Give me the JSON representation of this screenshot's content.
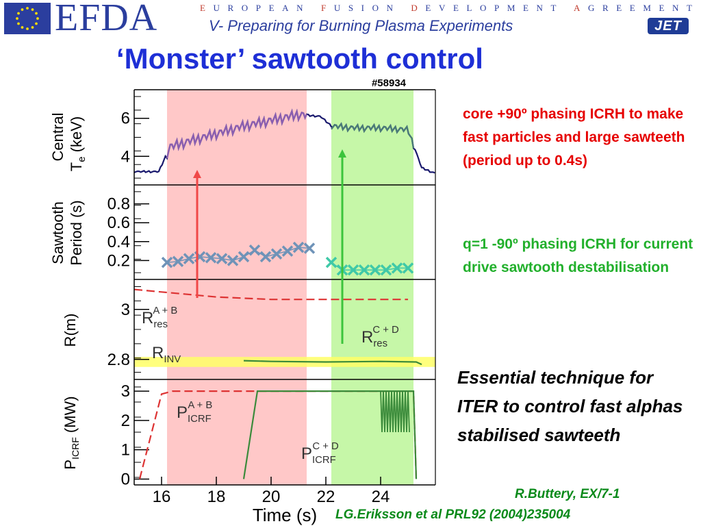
{
  "header": {
    "logo_text": "EFDA",
    "tagline_parts": [
      {
        "text": "E",
        "hl": true
      },
      {
        "text": "UROPEAN ",
        "hl": false
      },
      {
        "text": "F",
        "hl": true
      },
      {
        "text": "USION ",
        "hl": false
      },
      {
        "text": "D",
        "hl": true
      },
      {
        "text": "EVELOPMENT ",
        "hl": false
      },
      {
        "text": "A",
        "hl": true
      },
      {
        "text": "GREEMENT",
        "hl": false
      }
    ],
    "subtitle": "V- Preparing for Burning Plasma Experiments",
    "jet_logo": "JET",
    "eu_flag_icon": "eu-flag-icon"
  },
  "title": "‘Monster’ sawtooth control",
  "annotations": {
    "red_note": "core +90º phasing ICRH to make fast particles and large sawteeth (period up to 0.4s)",
    "green_note": "q=1 -90º phasing ICRH for current drive sawtooth destabilisation",
    "iter_note": "Essential technique for ITER to control fast alphas stabilised sawteeth",
    "ref_1": "R.Buttery, EX/7-1",
    "ref_2": "LG.Eriksson et al PRL92 (2004)235004"
  },
  "colors": {
    "brand_blue": "#2b3e9e",
    "title_blue": "#1e2fd6",
    "red_note": "#e60000",
    "green_note": "#22b02c",
    "ref_green": "#0a8a1a",
    "red_band": "#ffc8c8",
    "green_band": "#c6f7a8",
    "inv_band": "#ffff66",
    "te_trace": "#1a1a6e",
    "te_red_phase": "#8a5fb0",
    "te_green_phase": "#4a7a78",
    "sawtooth_red_phase": "#6f93b8",
    "sawtooth_green_phase": "#3fc9a8",
    "dashed_red": "#dd3333",
    "solid_green": "#3a8a3a"
  },
  "chart_data": {
    "type": "line",
    "shot": "#58934",
    "xlabel": "Time (s)",
    "xlim": [
      15,
      26
    ],
    "xticks": [
      16,
      18,
      20,
      22,
      24
    ],
    "highlight_bands": [
      {
        "name": "red",
        "x": [
          16.2,
          21.3
        ]
      },
      {
        "name": "green",
        "x": [
          22.2,
          25.2
        ]
      }
    ],
    "panels": [
      {
        "id": "te",
        "ylabel_line1": "Central",
        "ylabel_line2": "T",
        "ylabel_sub": "e",
        "ylabel_unit": " (keV)",
        "ylim": [
          2.5,
          7.5
        ],
        "yticks": [
          4,
          6
        ],
        "series": [
          {
            "style": "sawtooth",
            "points": [
              [
                15,
                3.2
              ],
              [
                15.9,
                3.2
              ],
              [
                16.3,
                4.5
              ],
              [
                17,
                4.8
              ],
              [
                18,
                5.2
              ],
              [
                19,
                5.6
              ],
              [
                20,
                5.9
              ],
              [
                21,
                6.2
              ],
              [
                21.8,
                6.1
              ],
              [
                22.2,
                5.6
              ],
              [
                23,
                5.5
              ],
              [
                24,
                5.5
              ],
              [
                25,
                5.4
              ],
              [
                25.5,
                3.4
              ],
              [
                26,
                3.1
              ]
            ]
          }
        ]
      },
      {
        "id": "sawtooth_period",
        "ylabel_line1": "Sawtooth",
        "ylabel_line2": "Period (s)",
        "ylim": [
          0,
          1.0
        ],
        "yticks": [
          0.2,
          0.4,
          0.6,
          0.8
        ],
        "series": [
          {
            "style": "crosses-red-phase",
            "points": [
              [
                16.2,
                0.18
              ],
              [
                16.6,
                0.19
              ],
              [
                17.0,
                0.22
              ],
              [
                17.4,
                0.24
              ],
              [
                17.8,
                0.23
              ],
              [
                18.2,
                0.22
              ],
              [
                18.6,
                0.2
              ],
              [
                19.0,
                0.24
              ],
              [
                19.4,
                0.31
              ],
              [
                19.8,
                0.24
              ],
              [
                20.2,
                0.27
              ],
              [
                20.6,
                0.3
              ],
              [
                21.0,
                0.34
              ],
              [
                21.4,
                0.33
              ]
            ]
          },
          {
            "style": "crosses-green-phase",
            "points": [
              [
                22.2,
                0.18
              ],
              [
                22.6,
                0.1
              ],
              [
                23.0,
                0.1
              ],
              [
                23.4,
                0.1
              ],
              [
                23.8,
                0.1
              ],
              [
                24.2,
                0.1
              ],
              [
                24.6,
                0.12
              ],
              [
                25.0,
                0.12
              ]
            ]
          }
        ]
      },
      {
        "id": "radius",
        "ylabel": "R(m)",
        "ylim": [
          2.72,
          3.12
        ],
        "yticks": [
          2.8,
          3.0
        ],
        "inv_band": [
          2.77,
          2.81
        ],
        "labels": [
          {
            "main": "R",
            "sub": "res",
            "sup": "A + B"
          },
          {
            "main": "R",
            "sub": "res",
            "sup": "C + D"
          },
          {
            "main": "R",
            "sub": "INV",
            "sup": ""
          }
        ],
        "series": [
          {
            "style": "dashed",
            "points": [
              [
                15,
                3.08
              ],
              [
                16,
                3.07
              ],
              [
                18,
                3.05
              ],
              [
                20,
                3.04
              ],
              [
                22,
                3.04
              ],
              [
                24,
                3.04
              ],
              [
                25,
                3.04
              ]
            ]
          },
          {
            "style": "solid",
            "points": [
              [
                19,
                2.795
              ],
              [
                20,
                2.792
              ],
              [
                22,
                2.79
              ],
              [
                24,
                2.792
              ],
              [
                25.3,
                2.79
              ],
              [
                25.5,
                2.78
              ]
            ]
          }
        ]
      },
      {
        "id": "picrf",
        "ylabel_main": "P",
        "ylabel_sub": "ICRF",
        "ylabel_unit": " (MW)",
        "ylim": [
          -0.2,
          3.4
        ],
        "yticks": [
          0,
          1,
          2,
          3
        ],
        "labels": [
          {
            "main": "P",
            "sub": "ICRF",
            "sup": "A + B"
          },
          {
            "main": "P",
            "sub": "ICRF",
            "sup": "C + D"
          }
        ],
        "series": [
          {
            "style": "dashed",
            "points": [
              [
                15.2,
                0
              ],
              [
                16.0,
                2.9
              ],
              [
                16.4,
                3.0
              ],
              [
                25.2,
                3.0
              ],
              [
                25.3,
                0
              ]
            ]
          },
          {
            "style": "solid",
            "points": [
              [
                19.0,
                0
              ],
              [
                19.5,
                3.0
              ],
              [
                22.5,
                3.0
              ],
              [
                24.0,
                3.0
              ],
              [
                25.2,
                3.0
              ],
              [
                25.3,
                0
              ]
            ]
          }
        ]
      }
    ]
  }
}
